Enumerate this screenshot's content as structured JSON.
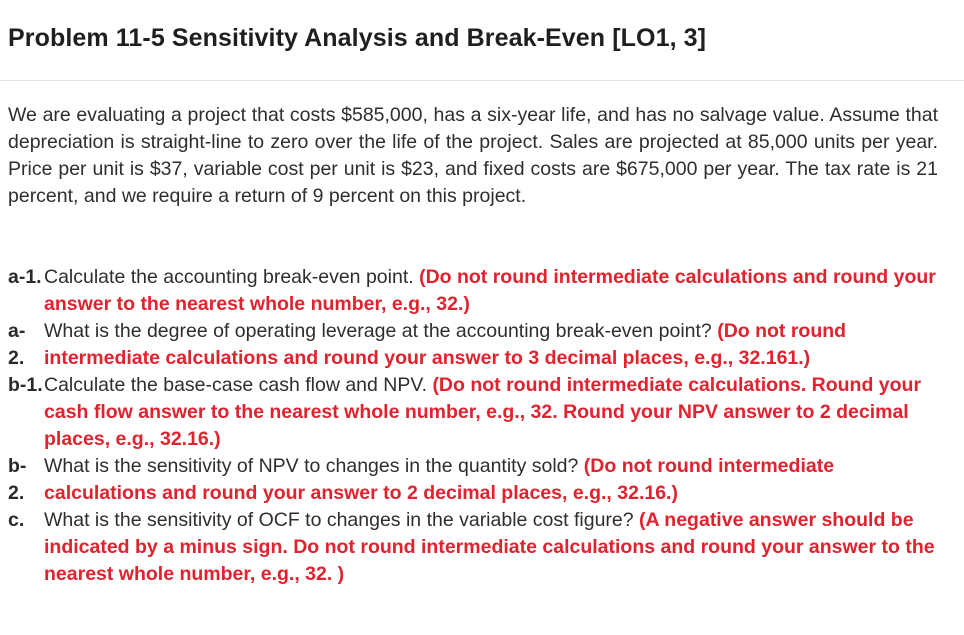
{
  "title": "Problem 11-5 Sensitivity Analysis and Break-Even [LO1, 3]",
  "intro": "We are evaluating a project that costs $585,000, has a six-year life, and has no salvage value. Assume that depreciation is straight-line to zero over the life of the project. Sales are projected at 85,000 units per year. Price per unit is $37, variable cost per unit is $23, and fixed costs are $675,000 per year. The tax rate is 21 percent, and we require a return of 9 percent on this project.",
  "parts": [
    {
      "label": "a-1.",
      "question": "Calculate the accounting break-even point.",
      "instruction": "(Do not round intermediate calculations and round your answer to the nearest whole number, e.g., 32.)"
    },
    {
      "label": "a-2.",
      "question": "What is the degree of operating leverage at the accounting break-even point?",
      "instruction": "(Do not round intermediate calculations and round your answer to 3 decimal places, e.g., 32.161.)"
    },
    {
      "label": "b-1.",
      "question": "Calculate the base-case cash flow and NPV.",
      "instruction": "(Do not round intermediate calculations. Round your cash flow answer to the nearest whole number, e.g., 32. Round your NPV answer to 2 decimal places, e.g., 32.16.)"
    },
    {
      "label": "b-2.",
      "question": "What is the sensitivity of NPV to changes in the quantity sold?",
      "instruction": "(Do not round intermediate calculations and round your answer to 2 decimal places, e.g., 32.16.)"
    },
    {
      "label": "c.",
      "question": "What is the sensitivity of OCF to changes in the variable cost figure?",
      "instruction": "(A negative answer should be indicated by a minus sign. Do not round intermediate calculations and round your answer to the nearest whole number, e.g., 32. )"
    }
  ]
}
